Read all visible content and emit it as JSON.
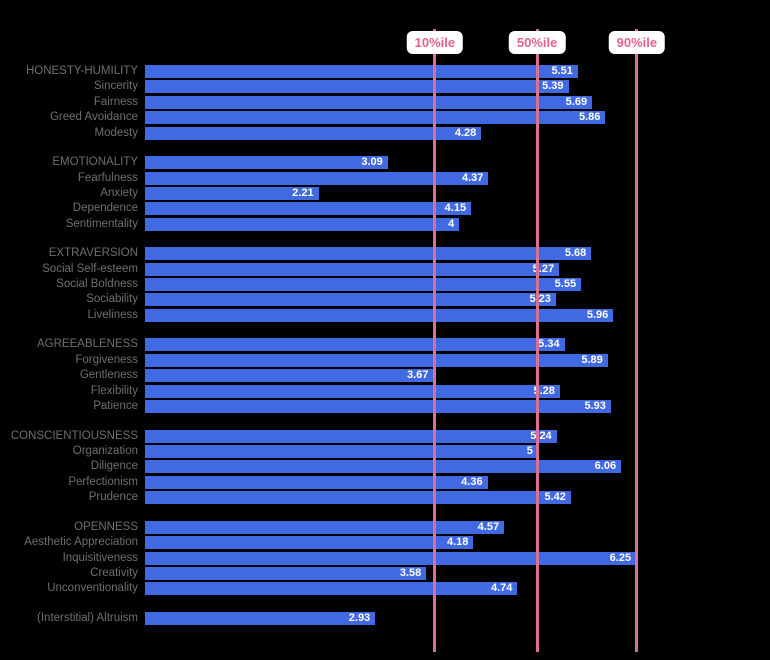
{
  "style": {
    "background_color": "#000000",
    "bar_color": "#4169E1",
    "reference_line_color": "#DB7093",
    "reference_label_text_color": "#E7618D",
    "reference_label_bg_color": "#FFFFFF",
    "category_label_color": "#6F6F6F",
    "value_label_color": "#FFFFFF"
  },
  "chart_data": {
    "type": "bar",
    "orientation": "horizontal",
    "title": "",
    "xlabel": "",
    "ylabel": "",
    "xlim": [
      0,
      7
    ],
    "grid": false,
    "legend": "none",
    "reference_lines": [
      {
        "label": "10%ile",
        "value": 3.69
      },
      {
        "label": "50%ile",
        "value": 4.99
      },
      {
        "label": "90%ile",
        "value": 6.26
      }
    ],
    "groups": [
      {
        "rows": [
          {
            "label": "HONESTY-HUMILITY",
            "value": 5.51,
            "value_label": "5.51"
          },
          {
            "label": "Sincerity",
            "value": 5.39,
            "value_label": "5.39"
          },
          {
            "label": "Fairness",
            "value": 5.69,
            "value_label": "5.69"
          },
          {
            "label": "Greed Avoidance",
            "value": 5.86,
            "value_label": "5.86"
          },
          {
            "label": "Modesty",
            "value": 4.28,
            "value_label": "4.28"
          }
        ]
      },
      {
        "rows": [
          {
            "label": "EMOTIONALITY",
            "value": 3.09,
            "value_label": "3.09"
          },
          {
            "label": "Fearfulness",
            "value": 4.37,
            "value_label": "4.37"
          },
          {
            "label": "Anxiety",
            "value": 2.21,
            "value_label": "2.21"
          },
          {
            "label": "Dependence",
            "value": 4.15,
            "value_label": "4.15"
          },
          {
            "label": "Sentimentality",
            "value": 4,
            "value_label": "4"
          }
        ]
      },
      {
        "rows": [
          {
            "label": "EXTRAVERSION",
            "value": 5.68,
            "value_label": "5.68"
          },
          {
            "label": "Social Self-esteem",
            "value": 5.27,
            "value_label": "5.27"
          },
          {
            "label": "Social Boldness",
            "value": 5.55,
            "value_label": "5.55"
          },
          {
            "label": "Sociability",
            "value": 5.23,
            "value_label": "5.23"
          },
          {
            "label": "Liveliness",
            "value": 5.96,
            "value_label": "5.96"
          }
        ]
      },
      {
        "rows": [
          {
            "label": "AGREEABLENESS",
            "value": 5.34,
            "value_label": "5.34"
          },
          {
            "label": "Forgiveness",
            "value": 5.89,
            "value_label": "5.89"
          },
          {
            "label": "Gentleness",
            "value": 3.67,
            "value_label": "3.67"
          },
          {
            "label": "Flexibility",
            "value": 5.28,
            "value_label": "5.28"
          },
          {
            "label": "Patience",
            "value": 5.93,
            "value_label": "5.93"
          }
        ]
      },
      {
        "rows": [
          {
            "label": "CONSCIENTIOUSNESS",
            "value": 5.24,
            "value_label": "5.24"
          },
          {
            "label": "Organization",
            "value": 5,
            "value_label": "5"
          },
          {
            "label": "Diligence",
            "value": 6.06,
            "value_label": "6.06"
          },
          {
            "label": "Perfectionism",
            "value": 4.36,
            "value_label": "4.36"
          },
          {
            "label": "Prudence",
            "value": 5.42,
            "value_label": "5.42"
          }
        ]
      },
      {
        "rows": [
          {
            "label": "OPENNESS",
            "value": 4.57,
            "value_label": "4.57"
          },
          {
            "label": "Aesthetic Appreciation",
            "value": 4.18,
            "value_label": "4.18"
          },
          {
            "label": "Inquisitiveness",
            "value": 6.25,
            "value_label": "6.25"
          },
          {
            "label": "Creativity",
            "value": 3.58,
            "value_label": "3.58"
          },
          {
            "label": "Unconventionality",
            "value": 4.74,
            "value_label": "4.74"
          }
        ]
      },
      {
        "rows": [
          {
            "label": "(Interstitial) Altruism",
            "value": 2.93,
            "value_label": "2.93"
          }
        ]
      }
    ]
  }
}
